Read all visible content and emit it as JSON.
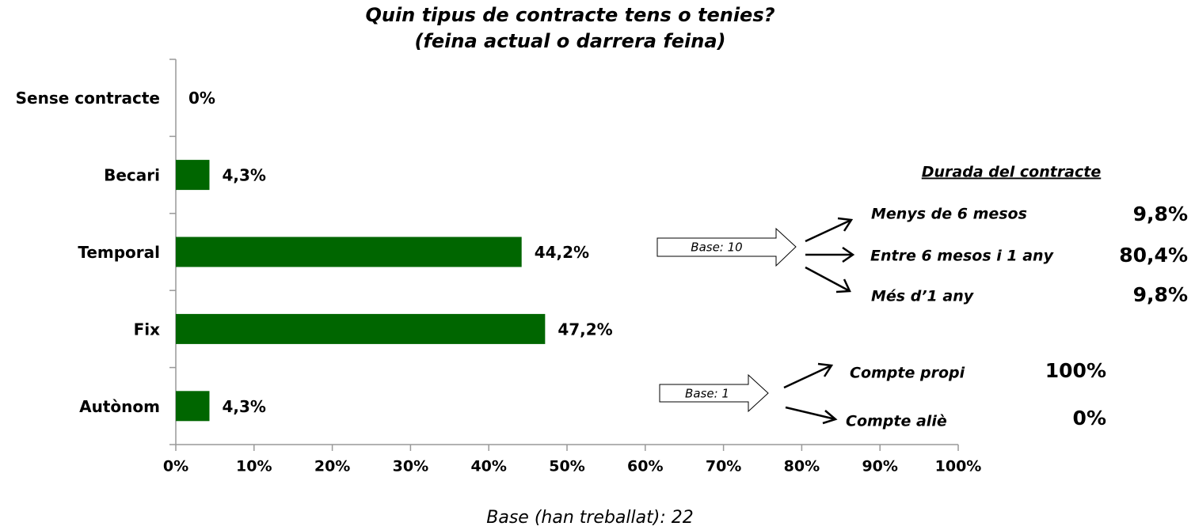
{
  "chart_data": {
    "type": "hbar",
    "title": "Quin tipus de contracte tens o tenies?",
    "subtitle": "(feina actual o darrera feina)",
    "categories": [
      "Sense contracte",
      "Becari",
      "Temporal",
      "Fix",
      "Autònom"
    ],
    "values": [
      0,
      4.3,
      44.2,
      47.2,
      4.3
    ],
    "value_labels": [
      "0%",
      "4,3%",
      "44,2%",
      "47,2%",
      "4,3%"
    ],
    "color": "#006600",
    "xlim": [
      0,
      100
    ],
    "xticks": [
      {
        "value": 0,
        "label": "0%"
      },
      {
        "value": 10,
        "label": "10%"
      },
      {
        "value": 20,
        "label": "20%"
      },
      {
        "value": 30,
        "label": "30%"
      },
      {
        "value": 40,
        "label": "40%"
      },
      {
        "value": 50,
        "label": "50%"
      },
      {
        "value": 60,
        "label": "60%"
      },
      {
        "value": 70,
        "label": "70%"
      },
      {
        "value": 80,
        "label": "80%"
      },
      {
        "value": 90,
        "label": "90%"
      },
      {
        "value": 100,
        "label": "100%"
      }
    ],
    "footnote": "Base (han treballat): 22",
    "breakdowns": [
      {
        "base": "Base: 10",
        "title": "Durada del contracte",
        "items": [
          {
            "label": "Menys de 6 mesos",
            "value_label": "9,8%"
          },
          {
            "label": "Entre 6 mesos i 1 any",
            "value_label": "80,4%"
          },
          {
            "label": "Més d’1 any",
            "value_label": "9,8%"
          }
        ]
      },
      {
        "base": "Base: 1",
        "items": [
          {
            "label": "Compte propi",
            "value_label": "100%"
          },
          {
            "label": "Compte aliè",
            "value_label": "0%"
          }
        ]
      }
    ]
  }
}
